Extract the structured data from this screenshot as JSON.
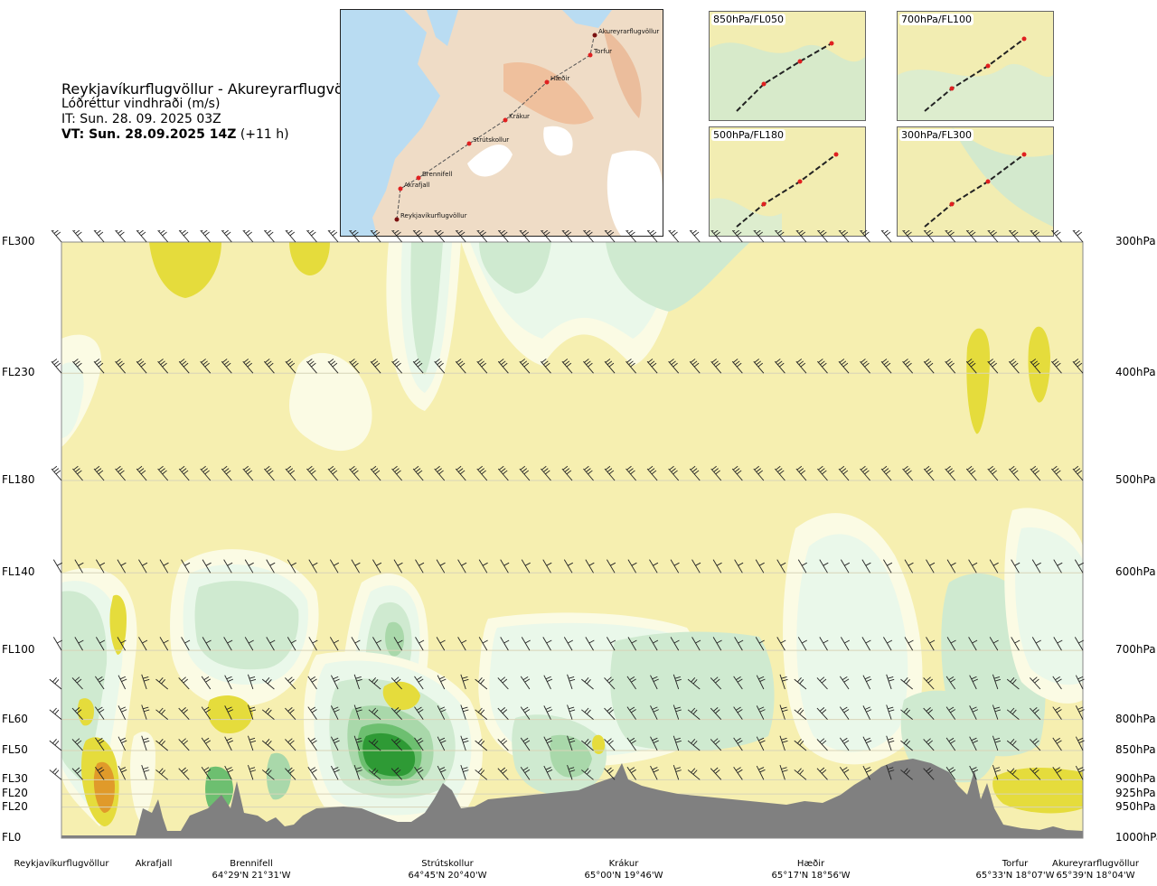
{
  "title": {
    "route": "Reykjavíkurflugvöllur - Akureyrarflugvöllur",
    "quantity": "Lóðréttur vindhraði (m/s)",
    "it": "IT: Sun. 28. 09. 2025 03Z",
    "vt_label": "VT: Sun. 28.09.2025 14Z",
    "vt_offset": " (+11 h)"
  },
  "map": {
    "waypoints": [
      "Akureyrarflugvöllur",
      "Torfur",
      "Hæðir",
      "Krákur",
      "Strútskollur",
      "Brennifell",
      "Akrafjall",
      "Reykjavíkurflugvöllur"
    ]
  },
  "panels": [
    {
      "label": "850hPa/FL050"
    },
    {
      "label": "700hPa/FL100"
    },
    {
      "label": "500hPa/FL180"
    },
    {
      "label": "300hPa/FL300"
    }
  ],
  "chart_data": {
    "type": "heatmap",
    "title": "Lóðréttur vindhraði (m/s)",
    "y_levels": [
      {
        "fl": "FL300",
        "hpa": "300hPa",
        "frac": 0.0
      },
      {
        "fl": "FL230",
        "hpa": "400hPa",
        "frac": 0.22
      },
      {
        "fl": "FL180",
        "hpa": "500hPa",
        "frac": 0.4
      },
      {
        "fl": "FL140",
        "hpa": "600hPa",
        "frac": 0.555
      },
      {
        "fl": "FL100",
        "hpa": "700hPa",
        "frac": 0.685
      },
      {
        "fl": "FL60",
        "hpa": "800hPa",
        "frac": 0.801
      },
      {
        "fl": "FL50",
        "hpa": "850hPa",
        "frac": 0.853
      },
      {
        "fl": "FL30",
        "hpa": "900hPa",
        "frac": 0.902
      },
      {
        "fl": "FL20",
        "hpa": "925hPa",
        "frac": 0.926
      },
      {
        "fl": "FL20",
        "hpa": "950hPa",
        "frac": 0.948
      },
      {
        "fl": "FL0",
        "hpa": "1000hPa",
        "frac": 1.0
      }
    ],
    "x_points": [
      {
        "name": "Reykjavíkurflugvöllur",
        "coord": "",
        "frac": 0.0
      },
      {
        "name": "Akrafjall",
        "coord": "",
        "frac": 0.091
      },
      {
        "name": "Brennifell",
        "coord": "64°29'N 21°31'W",
        "frac": 0.196
      },
      {
        "name": "Strútskollur",
        "coord": "64°45'N 20°40'W",
        "frac": 0.377
      },
      {
        "name": "Krákur",
        "coord": "65°00'N 19°46'W",
        "frac": 0.573
      },
      {
        "name": "Hæðir",
        "coord": "65°17'N 18°56'W",
        "frac": 0.755
      },
      {
        "name": "Torfur",
        "coord": "65°33'N 18°07'W",
        "frac": 0.958
      },
      {
        "name": "Akureyrarflugvöllur",
        "coord": "65°39'N 18°04'W",
        "frac": 1.0
      }
    ],
    "colors": {
      "background": "#f6efb0",
      "strong_up": "#e5dc3c",
      "very_strong_up": "#e09a2a",
      "near_zero": "#fbfbe4",
      "weak_down": "#eaf8ea",
      "down": "#cfead0",
      "mod_down": "#a9d8aa",
      "strong_down": "#6dbf70",
      "very_strong_down": "#2e9a35",
      "terrain": "#808080"
    }
  },
  "footer": {
    "places": [
      {
        "name": "Reykjavíkurflugvöllur",
        "coord": ""
      },
      {
        "name": "Akrafjall",
        "coord": ""
      },
      {
        "name": "Brennifell",
        "coord": "64°29'N 21°31'W"
      },
      {
        "name": "Strútskollur",
        "coord": "64°45'N 20°40'W"
      },
      {
        "name": "Krákur",
        "coord": "65°00'N 19°46'W"
      },
      {
        "name": "Hæðir",
        "coord": "65°17'N 18°56'W"
      },
      {
        "name": "Torfur",
        "coord": "65°33'N 18°07'W"
      },
      {
        "name": "Akureyrarflugvöllur",
        "coord": "65°39'N 18°04'W"
      }
    ]
  }
}
